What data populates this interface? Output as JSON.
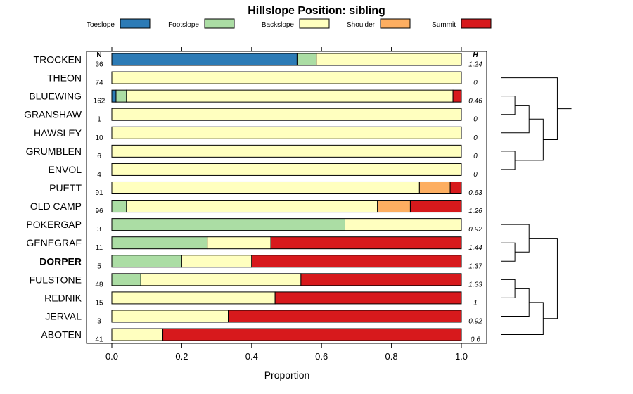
{
  "chart_data": {
    "type": "bar",
    "orientation": "horizontal",
    "stacked": true,
    "title": "Hillslope Position: sibling",
    "xlabel": "Proportion",
    "xlim": [
      0,
      1
    ],
    "xticks": [
      "0.0",
      "0.2",
      "0.4",
      "0.6",
      "0.8",
      "1.0"
    ],
    "n_header": "N",
    "h_header": "H",
    "legend_position": "top",
    "series": [
      {
        "name": "Toeslope",
        "color": "#2c7bb6"
      },
      {
        "name": "Footslope",
        "color": "#abdda4"
      },
      {
        "name": "Backslope",
        "color": "#ffffbf"
      },
      {
        "name": "Shoulder",
        "color": "#fdae61"
      },
      {
        "name": "Summit",
        "color": "#d7191c"
      }
    ],
    "highlight_category": "DORPER",
    "rows": [
      {
        "label": "TROCKEN",
        "n": "36",
        "h": "1.24",
        "values": [
          0.53,
          0.055,
          0.415,
          0,
          0
        ]
      },
      {
        "label": "THEON",
        "n": "74",
        "h": "0",
        "values": [
          0,
          0,
          1,
          0,
          0
        ]
      },
      {
        "label": "BLUEWING",
        "n": "162",
        "h": "0.46",
        "values": [
          0.012,
          0.03,
          0.934,
          0,
          0.024
        ]
      },
      {
        "label": "GRANSHAW",
        "n": "1",
        "h": "0",
        "values": [
          0,
          0,
          1,
          0,
          0
        ]
      },
      {
        "label": "HAWSLEY",
        "n": "10",
        "h": "0",
        "values": [
          0,
          0,
          1,
          0,
          0
        ]
      },
      {
        "label": "GRUMBLEN",
        "n": "6",
        "h": "0",
        "values": [
          0,
          0,
          1,
          0,
          0
        ]
      },
      {
        "label": "ENVOL",
        "n": "4",
        "h": "0",
        "values": [
          0,
          0,
          1,
          0,
          0
        ]
      },
      {
        "label": "PUETT",
        "n": "91",
        "h": "0.63",
        "values": [
          0,
          0,
          0.88,
          0.088,
          0.032
        ]
      },
      {
        "label": "OLD CAMP",
        "n": "96",
        "h": "1.26",
        "values": [
          0,
          0.042,
          0.718,
          0.094,
          0.146
        ]
      },
      {
        "label": "POKERGAP",
        "n": "3",
        "h": "0.92",
        "values": [
          0,
          0.667,
          0.333,
          0,
          0
        ]
      },
      {
        "label": "GENEGRAF",
        "n": "11",
        "h": "1.44",
        "values": [
          0,
          0.273,
          0.182,
          0,
          0.545
        ]
      },
      {
        "label": "DORPER",
        "n": "5",
        "h": "1.37",
        "values": [
          0,
          0.2,
          0.2,
          0,
          0.6
        ]
      },
      {
        "label": "FULSTONE",
        "n": "48",
        "h": "1.33",
        "values": [
          0,
          0.083,
          0.458,
          0,
          0.459
        ]
      },
      {
        "label": "REDNIK",
        "n": "15",
        "h": "1",
        "values": [
          0,
          0,
          0.467,
          0,
          0.533
        ]
      },
      {
        "label": "JERVAL",
        "n": "3",
        "h": "0.92",
        "values": [
          0,
          0,
          0.333,
          0,
          0.667
        ]
      },
      {
        "label": "ABOTEN",
        "n": "41",
        "h": "0.6",
        "values": [
          0,
          0,
          0.146,
          0,
          0.854
        ]
      }
    ],
    "dendrogram": [
      [
        [
          [
            [
              [
                "THEON",
                [
                  [
                    [
                      "BLUEWING",
                      "GRANSHAW"
                    ],
                    "HAWSLEY"
                  ],
                  [
                    "GRUMBLEN",
                    "ENVOL"
                  ]
                ]
              ]
            ],
            "PUETT"
          ],
          "OLD CAMP"
        ],
        "TROCKEN"
      ],
      [
        [
          "POKERGAP",
          [
            "GENEGRAF",
            "DORPER"
          ]
        ],
        [
          [
            [
              "FULSTONE",
              "REDNIK"
            ],
            "JERVAL"
          ],
          "ABOTEN"
        ]
      ]
    ]
  }
}
